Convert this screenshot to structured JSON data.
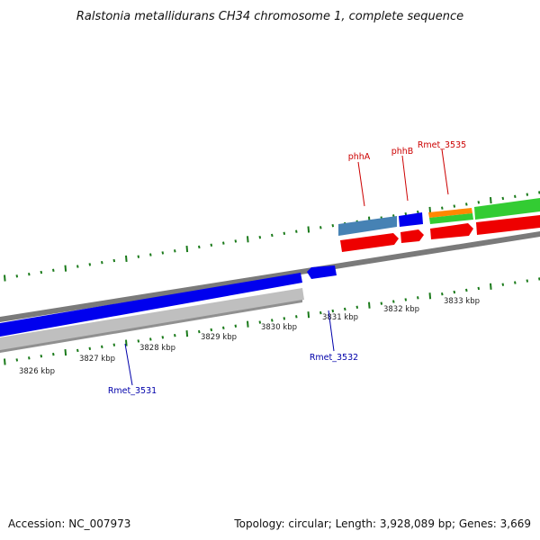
{
  "title": "Ralstonia metallidurans CH34 chromosome 1, complete sequence",
  "footer": {
    "accession": "Accession: NC_007973",
    "summary": "Topology: circular; Length: 3,928,089 bp; Genes: 3,669"
  },
  "kbp_labels": [
    "3826 kbp",
    "3827 kbp",
    "3828 kbp",
    "3829 kbp",
    "3830 kbp",
    "3831 kbp",
    "3832 kbp",
    "3833 kbp"
  ],
  "gene_labels_top": [
    "phhA",
    "phhB",
    "Rmet_3535"
  ],
  "gene_labels_bottom": [
    "Rmet_3531",
    "Rmet_3532"
  ],
  "colors": {
    "tick": "#1a7a1a",
    "backbone": "#808080",
    "blue": "#0000ee",
    "steelblue": "#4682b4",
    "red": "#ee0000",
    "green": "#33cc33",
    "orange": "#ff8800",
    "gray": "#bfbfbf",
    "red_label": "#cc0000",
    "blue_label": "#0000aa"
  }
}
